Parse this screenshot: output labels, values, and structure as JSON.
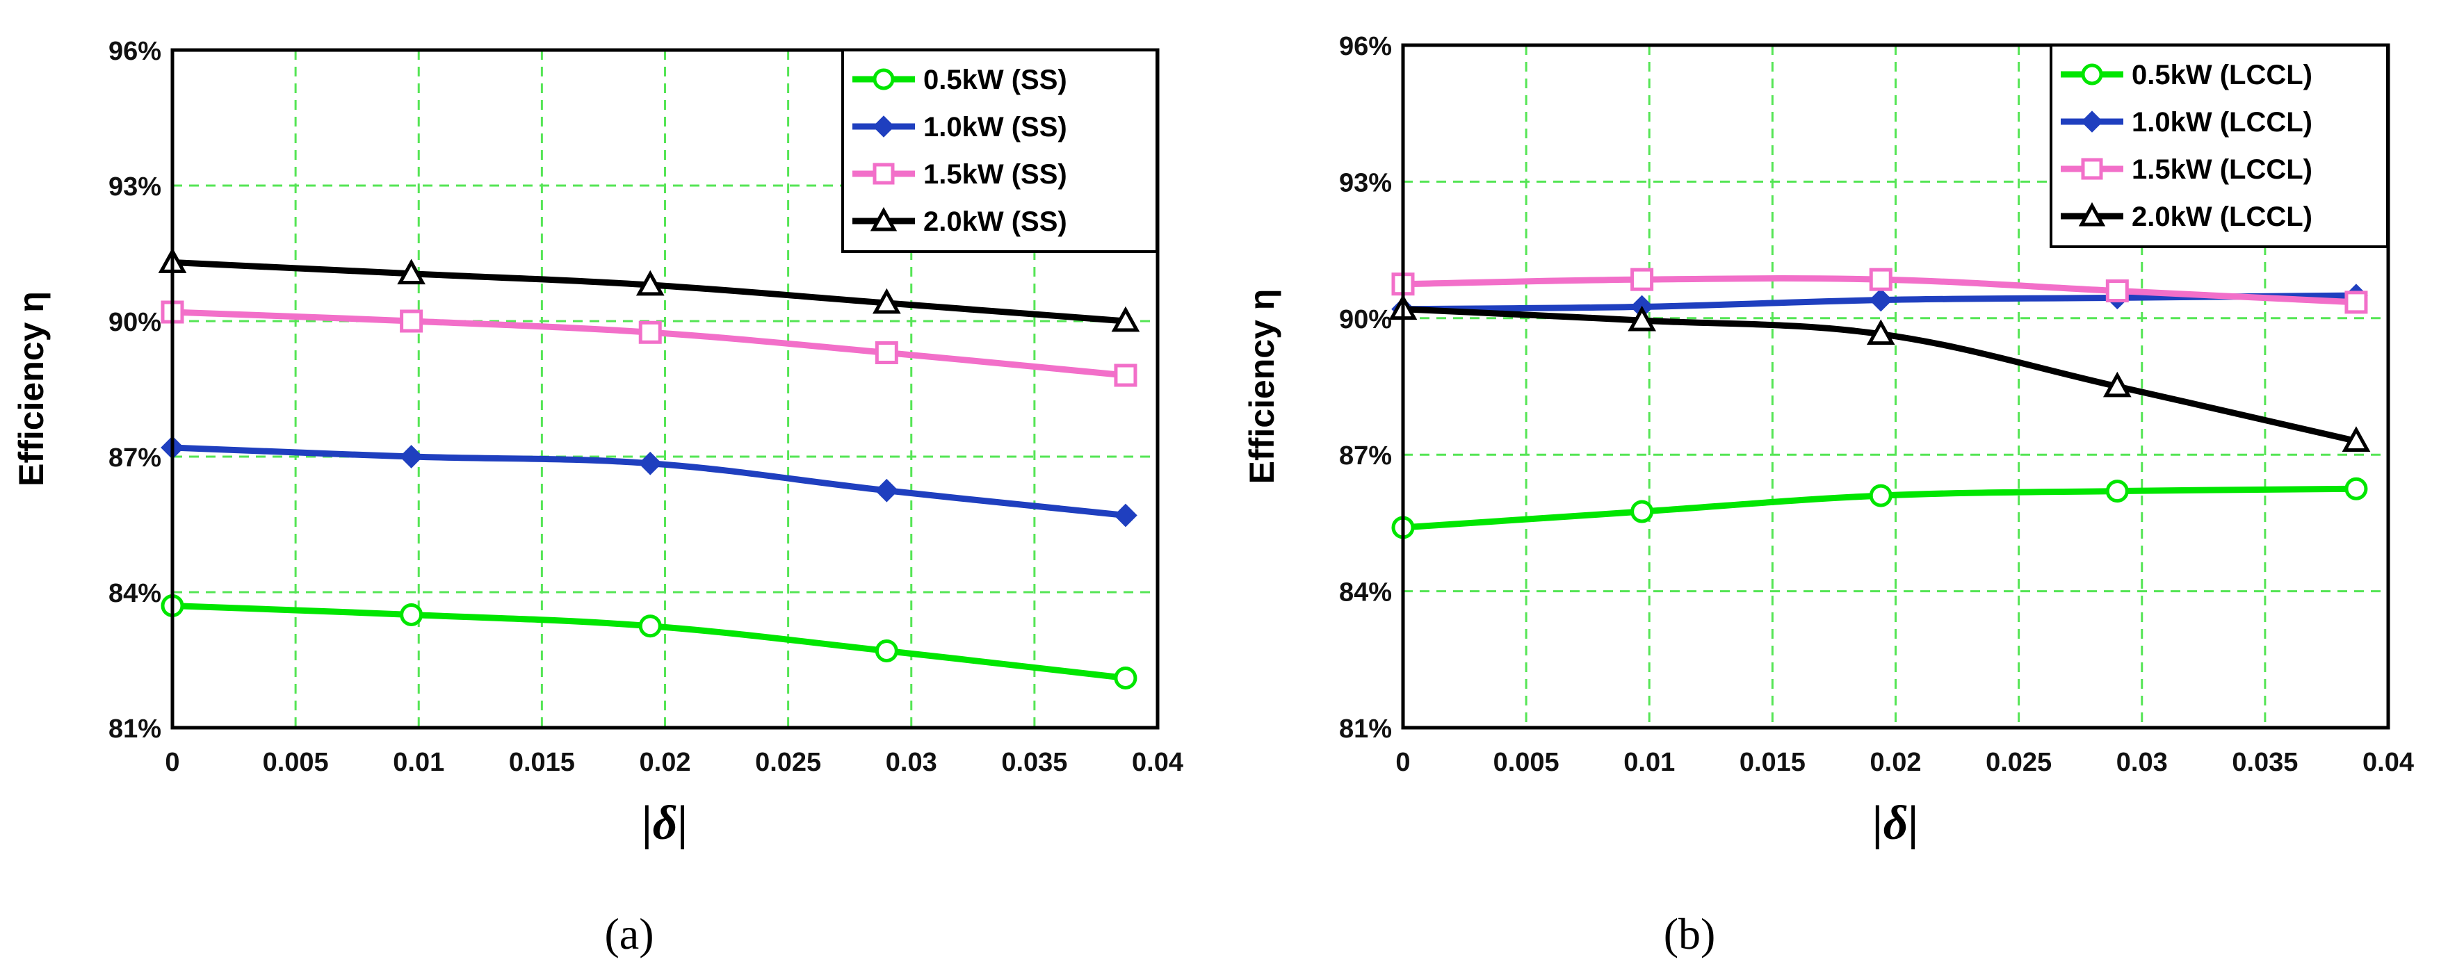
{
  "chart_data": [
    {
      "type": "line",
      "panel_label": "(a)",
      "xlabel": "|δ|",
      "ylabel": "Efficiency η",
      "xlim": [
        0,
        0.04
      ],
      "ylim": [
        81,
        96
      ],
      "x_ticks": [
        0,
        0.005,
        0.01,
        0.015,
        0.02,
        0.025,
        0.03,
        0.035,
        0.04
      ],
      "x_tick_labels": [
        "0",
        "0.005",
        "0.01",
        "0.015",
        "0.02",
        "0.025",
        "0.03",
        "0.035",
        "0.04"
      ],
      "y_ticks": [
        81,
        84,
        87,
        90,
        93,
        96
      ],
      "y_tick_labels": [
        "81%",
        "84%",
        "87%",
        "90%",
        "93%",
        "96%"
      ],
      "grid": true,
      "legend_position": "top-right",
      "x": [
        0,
        0.0097,
        0.0194,
        0.029,
        0.0387
      ],
      "series": [
        {
          "name": "0.5kW (SS)",
          "color": "#00e600",
          "marker": "circle",
          "values": [
            83.7,
            83.5,
            83.25,
            82.7,
            82.1
          ]
        },
        {
          "name": "1.0kW (SS)",
          "color": "#1f3fbf",
          "marker": "diamond",
          "values": [
            87.2,
            87.0,
            86.85,
            86.25,
            85.7
          ]
        },
        {
          "name": "1.5kW (SS)",
          "color": "#f26fc9",
          "marker": "square",
          "values": [
            90.2,
            90.0,
            89.75,
            89.3,
            88.8
          ]
        },
        {
          "name": "2.0kW (SS)",
          "color": "#000000",
          "marker": "triangle",
          "values": [
            91.3,
            91.05,
            90.8,
            90.4,
            90.0
          ]
        }
      ]
    },
    {
      "type": "line",
      "panel_label": "(b)",
      "xlabel": "|δ|",
      "ylabel": "Efficiency η",
      "xlim": [
        0,
        0.04
      ],
      "ylim": [
        81,
        96
      ],
      "x_ticks": [
        0,
        0.005,
        0.01,
        0.015,
        0.02,
        0.025,
        0.03,
        0.035,
        0.04
      ],
      "x_tick_labels": [
        "0",
        "0.005",
        "0.01",
        "0.015",
        "0.02",
        "0.025",
        "0.03",
        "0.035",
        "0.04"
      ],
      "y_ticks": [
        81,
        84,
        87,
        90,
        93,
        96
      ],
      "y_tick_labels": [
        "81%",
        "84%",
        "87%",
        "90%",
        "93%",
        "96%"
      ],
      "grid": true,
      "legend_position": "top-right",
      "x": [
        0,
        0.0097,
        0.0194,
        0.029,
        0.0387
      ],
      "series": [
        {
          "name": "0.5kW (LCCL)",
          "color": "#00e600",
          "marker": "circle",
          "values": [
            85.4,
            85.75,
            86.1,
            86.2,
            86.25
          ]
        },
        {
          "name": "1.0kW (LCCL)",
          "color": "#1f3fbf",
          "marker": "diamond",
          "values": [
            90.2,
            90.25,
            90.4,
            90.45,
            90.5
          ]
        },
        {
          "name": "1.5kW (LCCL)",
          "color": "#f26fc9",
          "marker": "square",
          "values": [
            90.75,
            90.85,
            90.85,
            90.6,
            90.35
          ]
        },
        {
          "name": "2.0kW (LCCL)",
          "color": "#000000",
          "marker": "triangle",
          "values": [
            90.2,
            89.95,
            89.65,
            88.5,
            87.3
          ]
        }
      ]
    }
  ]
}
